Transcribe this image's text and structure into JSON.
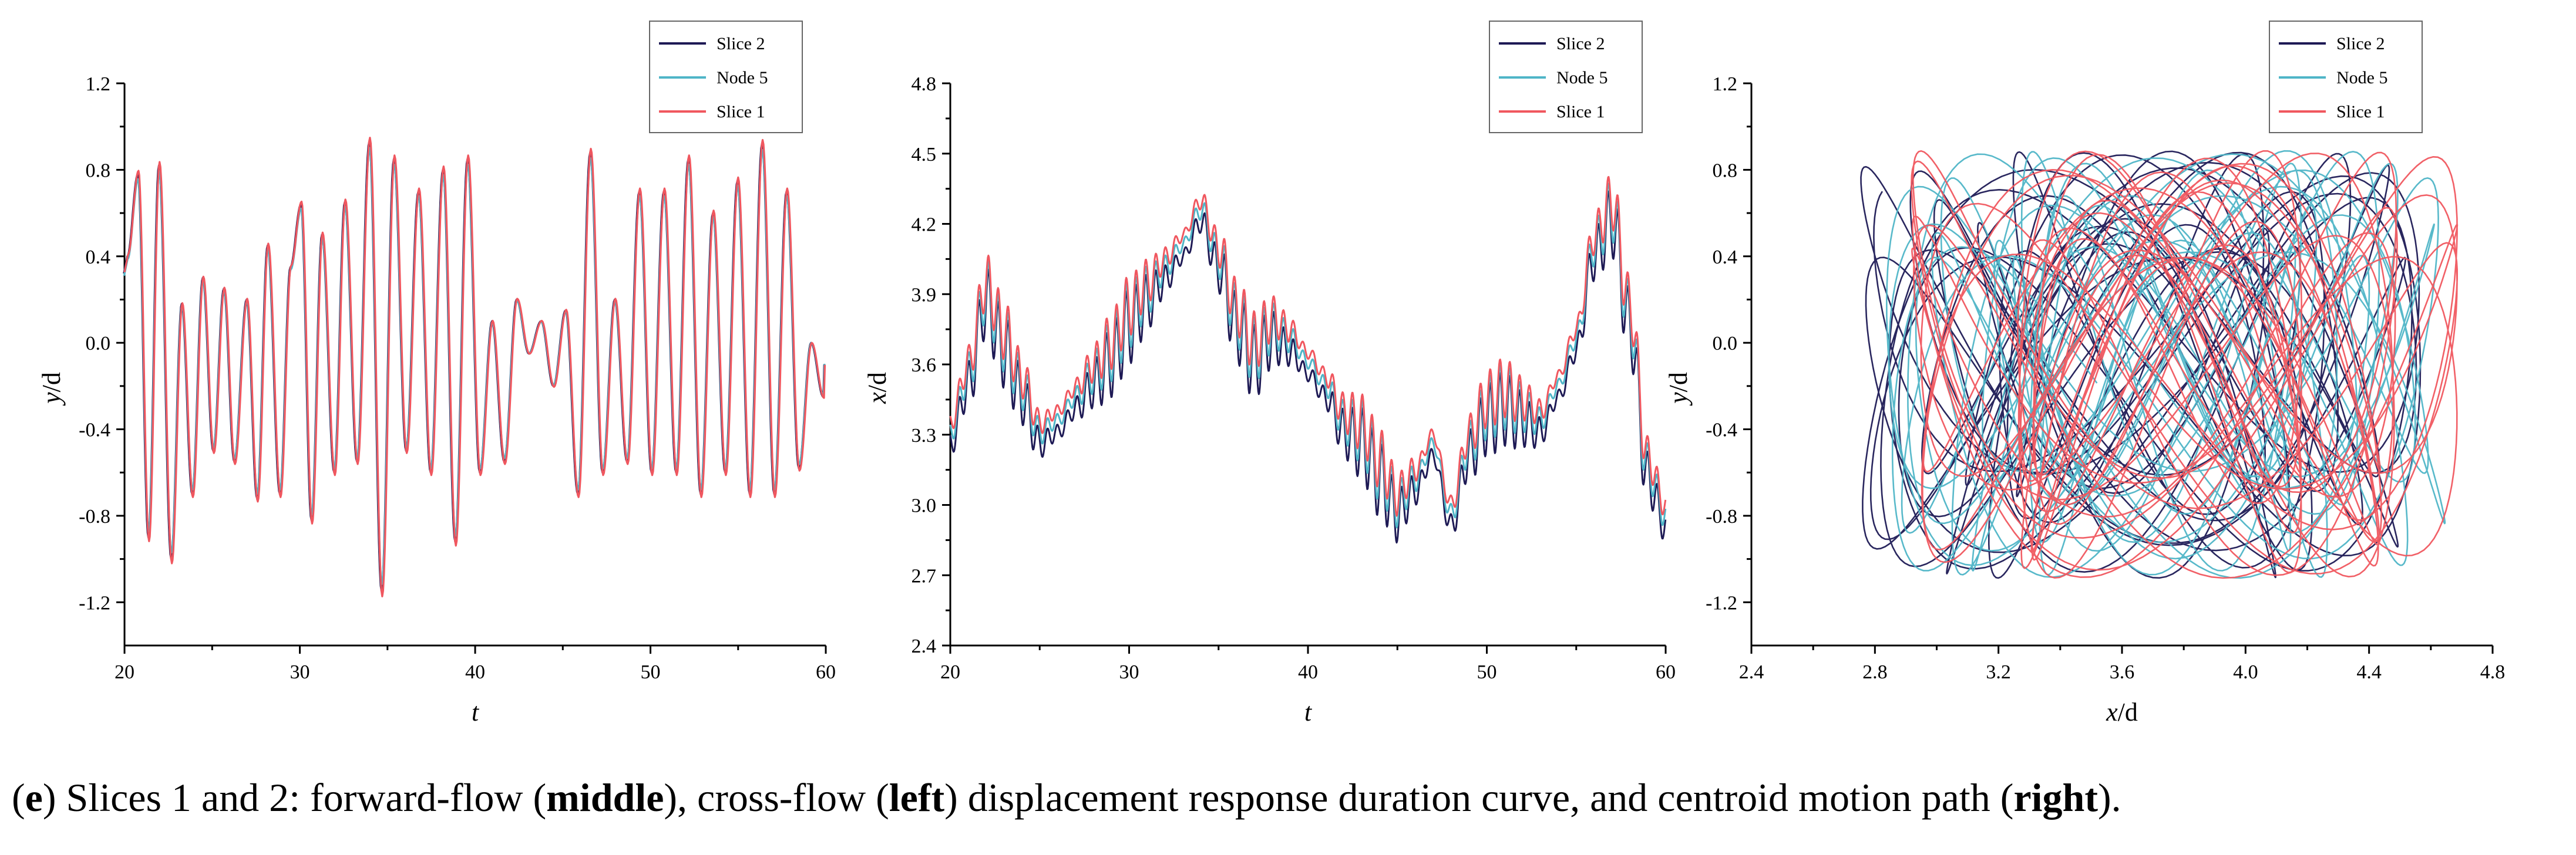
{
  "colors": {
    "slice2": "#1e1a55",
    "node5": "#4fb5c7",
    "slice1": "#f0575f"
  },
  "chart_data": [
    {
      "type": "line",
      "xlabel": "t",
      "ylabel_italic": "y",
      "ylabel_rest": "/d",
      "xlim": [
        20,
        60
      ],
      "ylim": [
        -1.4,
        1.2
      ],
      "xticks": [
        "20",
        "30",
        "40",
        "50",
        "60"
      ],
      "yticks": [
        "-1.2",
        "-0.8",
        "-0.4",
        "0.0",
        "0.4",
        "0.8",
        "1.2"
      ],
      "series": [
        {
          "name": "Slice  2",
          "color_key": "slice2"
        },
        {
          "name": "Node 5",
          "color_key": "node5"
        },
        {
          "name": "Slice  1",
          "color_key": "slice1"
        }
      ],
      "peaks_t": [
        20.2,
        20.8,
        21.4,
        22.0,
        22.7,
        23.3,
        23.9,
        24.5,
        25.1,
        25.7,
        26.3,
        27.0,
        27.6,
        28.2,
        28.9,
        29.5,
        30.1,
        30.7,
        31.3,
        32.0,
        32.6,
        33.3,
        34.0,
        34.7,
        35.4,
        36.1,
        36.8,
        37.5,
        38.2,
        38.9,
        39.6,
        40.3,
        41.0,
        41.7,
        42.4,
        43.1,
        43.8,
        44.5,
        45.2,
        45.9,
        46.6,
        47.3,
        48.0,
        48.7,
        49.4,
        50.1,
        50.8,
        51.5,
        52.2,
        52.9,
        53.6,
        54.3,
        55.0,
        55.7,
        56.4,
        57.1,
        57.8,
        58.5,
        59.2,
        59.9
      ],
      "peaks_y": [
        0.4,
        0.78,
        -0.9,
        0.82,
        -1.0,
        0.18,
        -0.7,
        0.3,
        -0.5,
        0.25,
        -0.55,
        0.2,
        -0.72,
        0.45,
        -0.7,
        0.35,
        0.64,
        -0.82,
        0.5,
        -0.6,
        0.65,
        -0.55,
        0.93,
        -1.15,
        0.85,
        -0.5,
        0.7,
        -0.6,
        0.8,
        -0.92,
        0.85,
        -0.6,
        0.1,
        -0.55,
        0.2,
        -0.05,
        0.1,
        -0.2,
        0.15,
        -0.7,
        0.88,
        -0.6,
        0.2,
        -0.55,
        0.7,
        -0.6,
        0.7,
        -0.6,
        0.85,
        -0.7,
        0.6,
        -0.6,
        0.75,
        -0.7,
        0.92,
        -0.7,
        0.7,
        -0.58,
        0.0,
        -0.25
      ]
    },
    {
      "type": "line",
      "xlabel": "t",
      "ylabel_italic": "x",
      "ylabel_rest": "/d",
      "xlim": [
        20,
        60
      ],
      "ylim": [
        2.4,
        4.8
      ],
      "xticks": [
        "20",
        "30",
        "40",
        "50",
        "60"
      ],
      "yticks": [
        "2.4",
        "2.7",
        "3.0",
        "3.3",
        "3.6",
        "3.9",
        "4.2",
        "4.5",
        "4.8"
      ],
      "series": [
        {
          "name": "Slice  2",
          "color_key": "slice2"
        },
        {
          "name": "Node 5",
          "color_key": "node5"
        },
        {
          "name": "Slice  1",
          "color_key": "slice1"
        }
      ],
      "trend_t": [
        20,
        21,
        22,
        23,
        24,
        25,
        26,
        27,
        28,
        29,
        30,
        31,
        32,
        33,
        34,
        35,
        36,
        37,
        38,
        39,
        40,
        41,
        42,
        43,
        44,
        45,
        46,
        47,
        48,
        49,
        50,
        51,
        52,
        53,
        54,
        55,
        56,
        57,
        58,
        59,
        60
      ],
      "trend_x": [
        3.35,
        3.6,
        3.95,
        3.75,
        3.55,
        3.35,
        3.4,
        3.5,
        3.6,
        3.7,
        3.85,
        3.95,
        4.05,
        4.15,
        4.3,
        4.1,
        3.85,
        3.7,
        3.8,
        3.75,
        3.65,
        3.55,
        3.4,
        3.35,
        3.2,
        3.05,
        3.15,
        3.3,
        3.0,
        3.3,
        3.45,
        3.5,
        3.45,
        3.4,
        3.55,
        3.75,
        4.15,
        4.3,
        3.85,
        3.2,
        3.0
      ],
      "oscillation_amplitude": 0.13,
      "oscillation_period": 0.55
    },
    {
      "type": "line",
      "xlabel_italic": "x",
      "xlabel_rest": "/d",
      "ylabel_italic": "y",
      "ylabel_rest": "/d",
      "xlim": [
        2.4,
        4.8
      ],
      "ylim": [
        -1.4,
        1.2
      ],
      "xticks": [
        "2.4",
        "2.8",
        "3.2",
        "3.6",
        "4.0",
        "4.4",
        "4.8"
      ],
      "yticks": [
        "-1.2",
        "-0.8",
        "-0.4",
        "0.0",
        "0.4",
        "0.8",
        "1.2"
      ],
      "series": [
        {
          "name": "Slice  2",
          "color_key": "slice2"
        },
        {
          "name": "Node 5",
          "color_key": "node5"
        },
        {
          "name": "Slice  1",
          "color_key": "slice1"
        }
      ],
      "path_center": [
        3.72,
        -0.1
      ],
      "path_extent_x": [
        2.65,
        4.62
      ],
      "path_extent_y": [
        -1.15,
        0.93
      ]
    }
  ],
  "caption": {
    "p1": "(",
    "b1": "e",
    "p2": ") Slices 1 and 2: forward-flow (",
    "b2": "middle",
    "p3": "), cross-flow (",
    "b3": "left",
    "p4": ") displacement response duration curve, and centroid motion path (",
    "b4": "right",
    "p5": ")."
  }
}
